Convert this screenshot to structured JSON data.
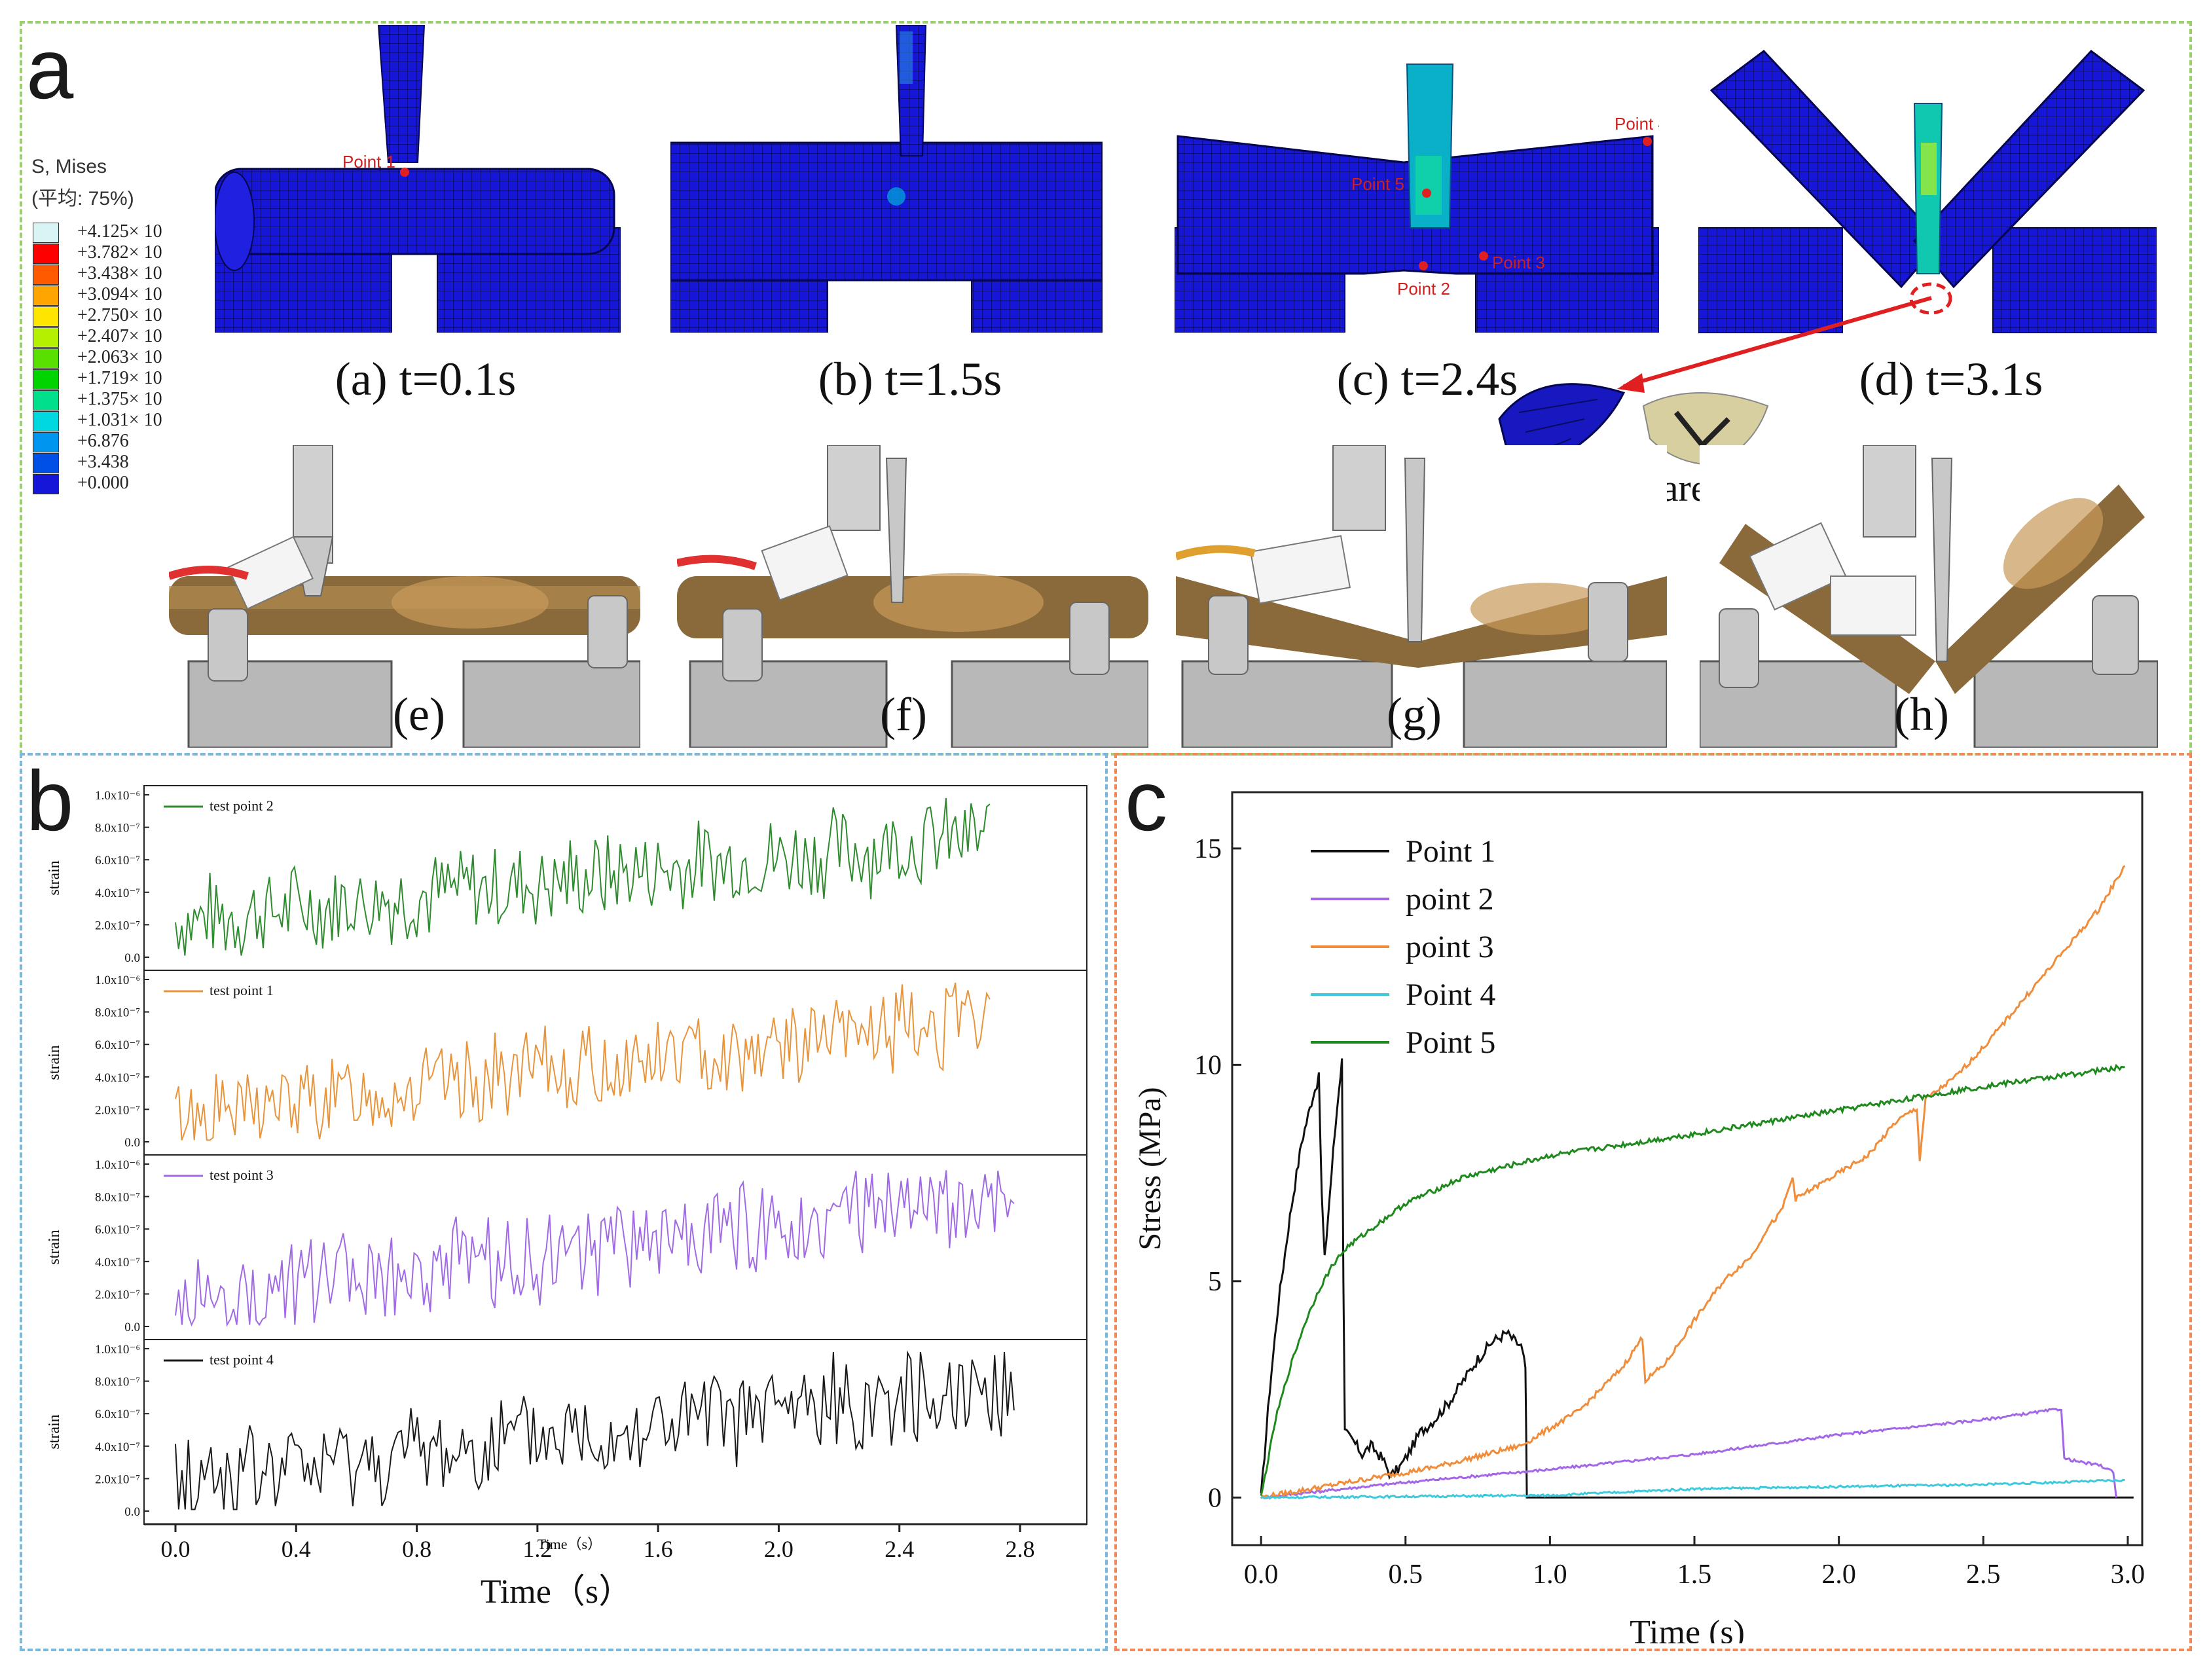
{
  "panels": {
    "a": {
      "letter": "a"
    },
    "b": {
      "letter": "b"
    },
    "c": {
      "letter": "c"
    }
  },
  "colors": {
    "a_border": "#9ad06a",
    "b_border": "#7ab8e0",
    "c_border": "#f08a5a",
    "fea_blue": "#1616d8",
    "arrow_red": "#e02020"
  },
  "contour_legend": {
    "title_line1": "S, Mises",
    "title_line2": "(平均: 75%)",
    "entries": [
      {
        "label": "+4.125× 10",
        "color": "#d8f4f4"
      },
      {
        "label": "+3.782× 10",
        "color": "#ff0000"
      },
      {
        "label": "+3.438× 10",
        "color": "#ff5a00"
      },
      {
        "label": "+3.094× 10",
        "color": "#ffa500"
      },
      {
        "label": "+2.750× 10",
        "color": "#ffe600"
      },
      {
        "label": "+2.407× 10",
        "color": "#b4f000"
      },
      {
        "label": "+2.063× 10",
        "color": "#5ae000"
      },
      {
        "label": "+1.719× 10",
        "color": "#00d400"
      },
      {
        "label": "+1.375× 10",
        "color": "#00e08c"
      },
      {
        "label": "+1.031× 10",
        "color": "#00d8e0"
      },
      {
        "label": "+6.876",
        "color": "#0096f0"
      },
      {
        "label": "+3.438",
        "color": "#0050e8"
      },
      {
        "label": "+0.000",
        "color": "#1616d8"
      }
    ]
  },
  "sim_captions": [
    "(a) t=0.1s",
    "(b) t=1.5s",
    "(c) t=2.4s",
    "(d) t=3.1s"
  ],
  "photo_labels": [
    "(e)",
    "(f)",
    "(g)",
    "(h)"
  ],
  "fea_points": {
    "p1": "Point 1",
    "p2": "Point 2",
    "p3": "Point 3",
    "p4": "Point 4",
    "p5": "Point 5"
  },
  "fracture_label": "Fracture area",
  "chart_data": [
    {
      "type": "line",
      "panel": "b",
      "xlabel": "Time（s）",
      "inner_xlabel": "Time（s）",
      "ylabel": "strain",
      "x_ticks": [
        "0.0",
        "0.4",
        "0.8",
        "1.2",
        "1.6",
        "2.0",
        "2.4",
        "2.8"
      ],
      "xlim": [
        0.0,
        2.8
      ],
      "ylim": [
        0.0,
        1e-06
      ],
      "y_ticks": [
        "0.0",
        "2.0x10⁻⁷",
        "4.0x10⁻⁷",
        "6.0x10⁻⁷",
        "8.0x10⁻⁷",
        "1.0x10⁻⁶"
      ],
      "series": [
        {
          "name": "test point 2",
          "color": "#2e8b2e",
          "t_end": 2.7,
          "start": 2.2e-07,
          "end": 7.5e-07,
          "amp": 3.2e-07,
          "seed": 7
        },
        {
          "name": "test point 1",
          "color": "#e8943a",
          "t_end": 2.7,
          "start": 1.5e-07,
          "end": 7.6e-07,
          "amp": 3e-07,
          "seed": 13
        },
        {
          "name": "test point 3",
          "color": "#a06ae6",
          "t_end": 2.78,
          "start": 1.5e-07,
          "end": 8e-07,
          "amp": 3.2e-07,
          "seed": 29
        },
        {
          "name": "test point 4",
          "color": "#1a1a1a",
          "t_end": 2.78,
          "start": 1.8e-07,
          "end": 7.8e-07,
          "amp": 3.4e-07,
          "seed": 41
        }
      ]
    },
    {
      "type": "line",
      "panel": "c",
      "title": "",
      "xlabel": "Time (s)",
      "ylabel": "Stress (MPa)",
      "xlim": [
        -0.1,
        3.05
      ],
      "ylim": [
        -1.1,
        16.3
      ],
      "x_ticks": [
        "0.0",
        "0.5",
        "1.0",
        "1.5",
        "2.0",
        "2.5",
        "3.0"
      ],
      "y_ticks": [
        "0",
        "5",
        "10",
        "15"
      ],
      "legend_position": "top-left",
      "series": [
        {
          "name": "Point 1",
          "color": "#111111",
          "points": [
            [
              0,
              0
            ],
            [
              0.03,
              2.5
            ],
            [
              0.06,
              4.5
            ],
            [
              0.1,
              6.5
            ],
            [
              0.14,
              8.2
            ],
            [
              0.18,
              9.3
            ],
            [
              0.2,
              9.7
            ],
            [
              0.21,
              7.0
            ],
            [
              0.22,
              5.5
            ],
            [
              0.25,
              8.0
            ],
            [
              0.27,
              9.5
            ],
            [
              0.28,
              10.1
            ],
            [
              0.285,
              5.0
            ],
            [
              0.29,
              1.5
            ],
            [
              0.32,
              1.3
            ],
            [
              0.35,
              1.0
            ],
            [
              0.38,
              1.2
            ],
            [
              0.42,
              0.9
            ],
            [
              0.45,
              0.5
            ],
            [
              0.48,
              0.7
            ],
            [
              0.5,
              0.9
            ],
            [
              0.55,
              1.5
            ],
            [
              0.6,
              1.8
            ],
            [
              0.65,
              2.2
            ],
            [
              0.7,
              2.7
            ],
            [
              0.75,
              3.2
            ],
            [
              0.8,
              3.6
            ],
            [
              0.85,
              3.8
            ],
            [
              0.88,
              3.6
            ],
            [
              0.9,
              3.5
            ],
            [
              0.915,
              3.0
            ],
            [
              0.92,
              0.0
            ],
            [
              1.5,
              0.0
            ],
            [
              2.0,
              0.0
            ],
            [
              3.02,
              0.0
            ]
          ],
          "noise": 0.25
        },
        {
          "name": "point 2",
          "color": "#a366e6",
          "points": [
            [
              0,
              0
            ],
            [
              0.5,
              0.35
            ],
            [
              1.0,
              0.65
            ],
            [
              1.5,
              1.0
            ],
            [
              2.0,
              1.45
            ],
            [
              2.5,
              1.8
            ],
            [
              2.77,
              2.05
            ],
            [
              2.78,
              0.9
            ],
            [
              2.85,
              0.8
            ],
            [
              2.9,
              0.75
            ],
            [
              2.95,
              0.6
            ],
            [
              2.96,
              0.0
            ]
          ],
          "noise": 0.06
        },
        {
          "name": "point 3",
          "color": "#f08c3a",
          "points": [
            [
              0,
              0
            ],
            [
              0.3,
              0.35
            ],
            [
              0.6,
              0.7
            ],
            [
              0.9,
              1.2
            ],
            [
              1.1,
              2.0
            ],
            [
              1.25,
              3.0
            ],
            [
              1.32,
              3.7
            ],
            [
              1.33,
              2.7
            ],
            [
              1.4,
              3.1
            ],
            [
              1.5,
              4.1
            ],
            [
              1.6,
              5.0
            ],
            [
              1.7,
              5.6
            ],
            [
              1.75,
              6.2
            ],
            [
              1.8,
              6.6
            ],
            [
              1.84,
              7.4
            ],
            [
              1.85,
              6.9
            ],
            [
              1.95,
              7.3
            ],
            [
              2.1,
              7.9
            ],
            [
              2.2,
              8.7
            ],
            [
              2.27,
              9.0
            ],
            [
              2.28,
              7.8
            ],
            [
              2.3,
              9.2
            ],
            [
              2.4,
              9.7
            ],
            [
              2.5,
              10.4
            ],
            [
              2.7,
              12.0
            ],
            [
              2.9,
              13.6
            ],
            [
              2.99,
              14.6
            ]
          ],
          "noise": 0.12
        },
        {
          "name": "Point 4",
          "color": "#3ccadc",
          "points": [
            [
              0,
              0
            ],
            [
              1.0,
              0.05
            ],
            [
              1.5,
              0.2
            ],
            [
              2.0,
              0.25
            ],
            [
              2.5,
              0.3
            ],
            [
              2.99,
              0.4
            ]
          ],
          "noise": 0.05
        },
        {
          "name": "Point 5",
          "color": "#1e8a1e",
          "points": [
            [
              0,
              0
            ],
            [
              0.05,
              1.8
            ],
            [
              0.1,
              3.0
            ],
            [
              0.15,
              4.0
            ],
            [
              0.2,
              4.8
            ],
            [
              0.25,
              5.4
            ],
            [
              0.3,
              5.8
            ],
            [
              0.4,
              6.3
            ],
            [
              0.5,
              6.8
            ],
            [
              0.7,
              7.4
            ],
            [
              1.0,
              7.9
            ],
            [
              1.5,
              8.4
            ],
            [
              2.0,
              8.95
            ],
            [
              2.5,
              9.5
            ],
            [
              2.99,
              9.95
            ]
          ],
          "noise": 0.12
        }
      ]
    }
  ]
}
